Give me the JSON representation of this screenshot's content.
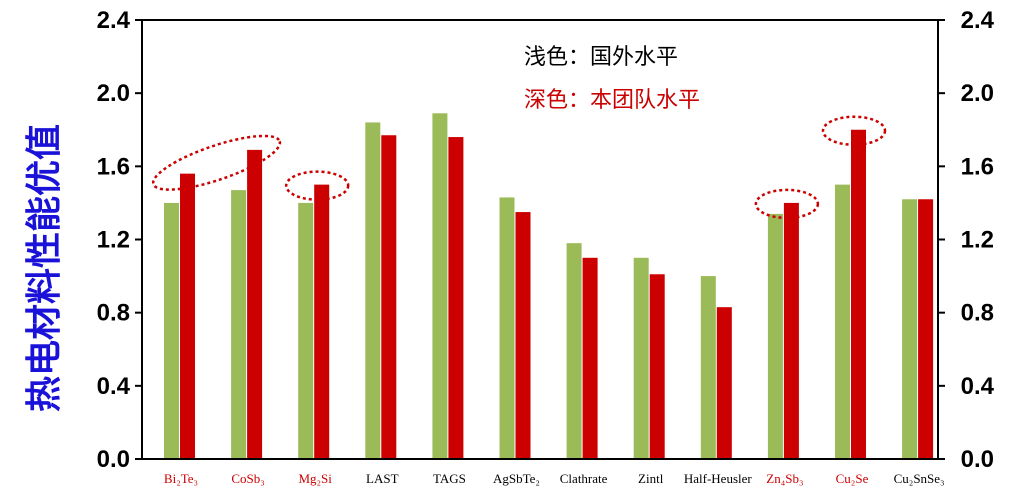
{
  "chart_data": {
    "type": "bar",
    "ylabel": "热电材料性能优值",
    "ylim": [
      0,
      2.4
    ],
    "yticks": [
      "0.0",
      "0.4",
      "0.8",
      "1.2",
      "1.6",
      "2.0",
      "2.4"
    ],
    "categories": [
      "Bi₂Te₃",
      "CoSb₃",
      "Mg₂Si",
      "LAST",
      "TAGS",
      "AgSbTe₂",
      "Clathrate",
      "Zintl",
      "Half-Heusler",
      "Zn₄Sb₃",
      "Cu₂Se",
      "Cu₂SnSe₃"
    ],
    "highlighted_categories": [
      "Bi₂Te₃",
      "CoSb₃",
      "Mg₂Si",
      "Zn₄Sb₃",
      "Cu₂Se"
    ],
    "series": [
      {
        "name": "浅色：国外水平",
        "color": "#9bbb59",
        "values": [
          1.4,
          1.47,
          1.4,
          1.84,
          1.89,
          1.43,
          1.18,
          1.1,
          1.0,
          1.34,
          1.5,
          1.42
        ]
      },
      {
        "name": "深色：本团队水平",
        "color": "#cc0000",
        "values": [
          1.56,
          1.69,
          1.5,
          1.77,
          1.76,
          1.35,
          1.1,
          1.01,
          0.83,
          1.4,
          1.8,
          1.42
        ]
      }
    ],
    "grid": false,
    "legend_position": "top-center",
    "colors": {
      "axis": "#000000",
      "ylabel": "#1a12d8",
      "highlight_label": "#cc0000",
      "normal_label": "#000000",
      "ellipse": "#cc0000"
    }
  }
}
